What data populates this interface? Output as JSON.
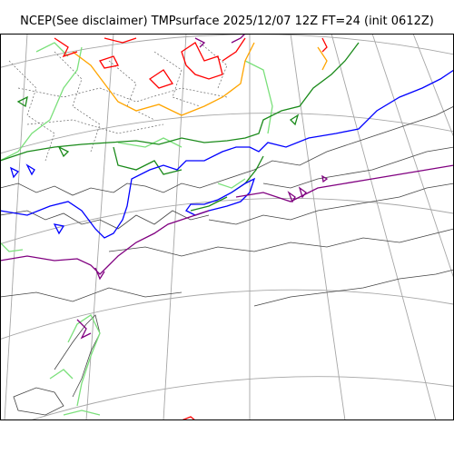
{
  "title": "NCEP(See disclaimer) TMPsurface 2025/12/07 12Z FT=24 (init 0612Z)",
  "colors": {
    "graticule": "#a6a6a6",
    "coastline": "#444444",
    "contour_red": "#ff0000",
    "contour_orange": "#ffa500",
    "contour_lightgreen": "#7be07b",
    "contour_darkgreen": "#1a8a1a",
    "contour_blue": "#0000ff",
    "contour_purple": "#800080",
    "contour_dotted": "#666666"
  }
}
